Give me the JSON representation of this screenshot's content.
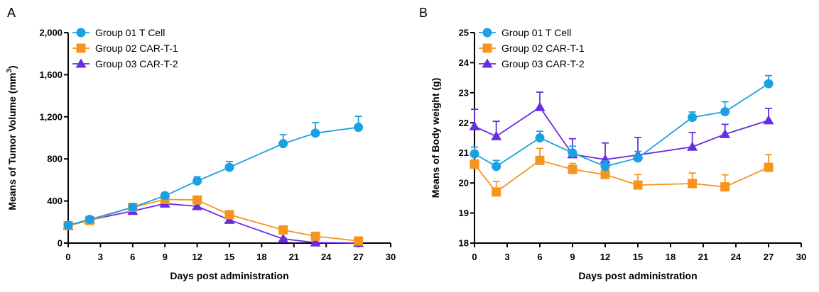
{
  "chart_data": [
    {
      "type": "line",
      "panel": "A",
      "title": "",
      "xlabel": "Days post administration",
      "ylabel": "Means of Tumor Volume (mm",
      "ylabel_sup": "3",
      "ylabel_close": ")",
      "xlim": [
        0,
        30
      ],
      "ylim": [
        0,
        2000
      ],
      "xticks": [
        0,
        3,
        6,
        9,
        12,
        15,
        18,
        21,
        24,
        27,
        30
      ],
      "xtick_labels": [
        "0",
        "3",
        "6",
        "9",
        "12",
        "15",
        "18",
        "21",
        "24",
        "27",
        "30"
      ],
      "yticks": [
        0,
        400,
        800,
        1200,
        1600,
        2000
      ],
      "ytick_labels": [
        "0",
        "400",
        "800",
        "1,200",
        "1,600",
        "2,000"
      ],
      "legend_position": "top-left",
      "series": [
        {
          "name": "Group 01 T Cell",
          "color": "#1ba1e2",
          "marker": "circle",
          "x": [
            0,
            2,
            6,
            9,
            12,
            15,
            20,
            23,
            27
          ],
          "values": [
            170,
            225,
            340,
            450,
            590,
            720,
            945,
            1045,
            1100
          ],
          "errors": [
            20,
            20,
            30,
            30,
            40,
            55,
            85,
            100,
            105
          ]
        },
        {
          "name": "Group 02 CAR-T-1",
          "color": "#f7941d",
          "marker": "square",
          "x": [
            0,
            2,
            6,
            9,
            12,
            15,
            20,
            23,
            27
          ],
          "values": [
            165,
            215,
            340,
            415,
            410,
            270,
            125,
            65,
            20
          ],
          "errors": [
            15,
            15,
            25,
            25,
            30,
            20,
            15,
            10,
            5
          ]
        },
        {
          "name": "Group 03 CAR-T-2",
          "color": "#6a2ce3",
          "marker": "triangle",
          "x": [
            0,
            2,
            6,
            9,
            12,
            15,
            20,
            23,
            27
          ],
          "values": [
            165,
            220,
            305,
            375,
            350,
            220,
            40,
            5,
            0
          ],
          "errors": [
            15,
            15,
            20,
            25,
            25,
            20,
            10,
            5,
            2
          ]
        }
      ]
    },
    {
      "type": "line",
      "panel": "B",
      "title": "",
      "xlabel": "Days post administration",
      "ylabel": "Means of Body weight (g)",
      "xlim": [
        0,
        30
      ],
      "ylim": [
        18,
        25
      ],
      "xticks": [
        0,
        3,
        6,
        9,
        12,
        15,
        18,
        21,
        24,
        27,
        30
      ],
      "xtick_labels": [
        "0",
        "3",
        "6",
        "9",
        "12",
        "15",
        "18",
        "21",
        "24",
        "27",
        "30"
      ],
      "yticks": [
        18,
        19,
        20,
        21,
        22,
        23,
        24,
        25
      ],
      "ytick_labels": [
        "18",
        "19",
        "20",
        "21",
        "22",
        "23",
        "24",
        "25"
      ],
      "legend_position": "top-left",
      "series": [
        {
          "name": "Group 01 T Cell",
          "color": "#1ba1e2",
          "marker": "circle",
          "x": [
            0,
            2,
            6,
            9,
            12,
            15,
            20,
            23,
            27
          ],
          "values": [
            20.97,
            20.55,
            21.5,
            21.0,
            20.55,
            20.83,
            22.18,
            22.37,
            23.3
          ],
          "errors": [
            0.22,
            0.2,
            0.22,
            0.22,
            0.18,
            0.22,
            0.18,
            0.33,
            0.27
          ]
        },
        {
          "name": "Group 02 CAR-T-1",
          "color": "#f7941d",
          "marker": "square",
          "x": [
            0,
            2,
            6,
            9,
            12,
            15,
            20,
            23,
            27
          ],
          "values": [
            20.62,
            19.7,
            20.75,
            20.45,
            20.28,
            19.93,
            19.98,
            19.87,
            20.52
          ],
          "errors": [
            0.15,
            0.35,
            0.4,
            0.2,
            0.15,
            0.35,
            0.35,
            0.4,
            0.42
          ]
        },
        {
          "name": "Group 03 CAR-T-2",
          "color": "#6a2ce3",
          "marker": "triangle",
          "x": [
            0,
            2,
            6,
            9,
            12,
            15,
            20,
            23,
            27
          ],
          "values": [
            21.88,
            21.55,
            22.52,
            20.95,
            20.78,
            20.93,
            21.2,
            21.62,
            22.08
          ],
          "errors": [
            0.57,
            0.5,
            0.5,
            0.52,
            0.55,
            0.58,
            0.48,
            0.33,
            0.4
          ]
        }
      ]
    }
  ]
}
